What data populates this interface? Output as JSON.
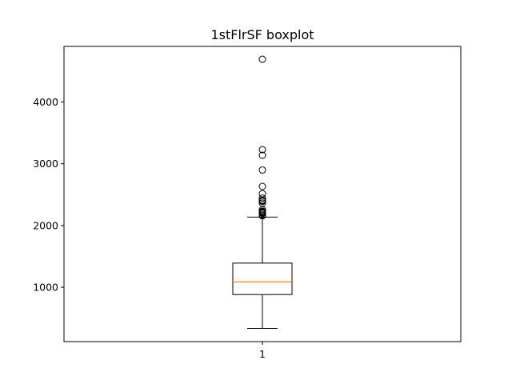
{
  "chart_data": {
    "type": "boxplot",
    "title": "1stFlrSF boxplot",
    "xlabel": "",
    "ylabel": "",
    "categories": [
      "1"
    ],
    "ylim": [
      120,
      4900
    ],
    "yticks": [
      1000,
      2000,
      3000,
      4000
    ],
    "ytick_labels": [
      "1000",
      "2000",
      "3000",
      "4000"
    ],
    "grid": false,
    "box": {
      "whisker_low": 334,
      "q1": 882,
      "median": 1087,
      "q3": 1391,
      "whisker_high": 2136
    },
    "outliers": [
      2158,
      2172,
      2196,
      2207,
      2217,
      2229,
      2234,
      2259,
      2364,
      2392,
      2402,
      2411,
      2444,
      2515,
      2633,
      2898,
      3138,
      3228,
      4692
    ],
    "colors": {
      "box": "#000000",
      "median": "#ff7f0e",
      "outlier": "#000000"
    }
  }
}
